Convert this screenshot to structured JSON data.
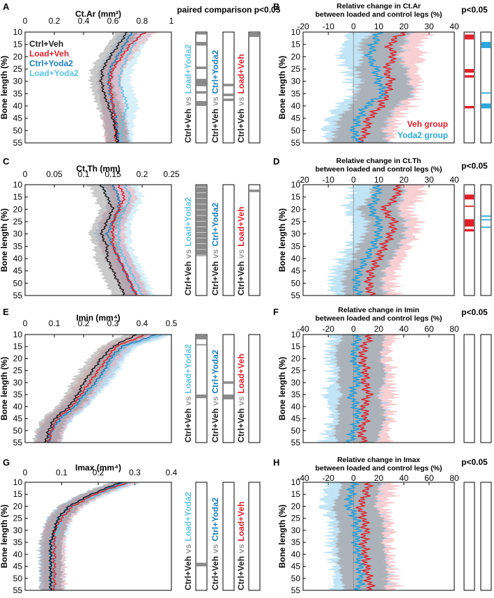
{
  "figure": {
    "common": {
      "ylabel": "Bone length (%)",
      "y_ticks": [
        10,
        15,
        20,
        25,
        30,
        35,
        40,
        45,
        50,
        55
      ],
      "ylim": [
        10,
        55
      ],
      "colors": {
        "ctrl_veh": "#1a1a1a",
        "load_veh": "#e0202a",
        "ctrl_yoda2": "#1a7fc0",
        "load_yoda2": "#5bc4e8",
        "grey_band": "#8a8a8a"
      }
    },
    "vs_label": "vs",
    "sig_header": "paired comparison p<0.05",
    "p_header": "p<0.05",
    "legend": [
      {
        "name": "Ctrl+Veh",
        "color": "#1a1a1a"
      },
      {
        "name": "Load+Veh",
        "color": "#e0202a"
      },
      {
        "name": "Ctrl+Yoda2",
        "color": "#1a7fc0"
      },
      {
        "name": "Load+Yoda2",
        "color": "#5bc4e8"
      }
    ],
    "right_legend": [
      {
        "name": "Veh group",
        "color": "#e0202a"
      },
      {
        "name": "Yoda2 group",
        "color": "#2aa7dc"
      }
    ],
    "comparisons": [
      {
        "label_a": "Ctrl+Veh",
        "label_b": "Load+Yoda2",
        "color_a": "#1a1a1a",
        "color_b": "#5bc4e8"
      },
      {
        "label_a": "Ctrl+Veh",
        "label_b": "Ctrl+Yoda2",
        "color_a": "#1a1a1a",
        "color_b": "#1a7fc0"
      },
      {
        "label_a": "Ctrl+Veh",
        "label_b": "Load+Veh",
        "color_a": "#1a1a1a",
        "color_b": "#e0202a"
      }
    ]
  },
  "chart_data": [
    {
      "panel": "A",
      "type": "line",
      "title": "Ct.Ar (mm²)",
      "xlim": [
        0,
        1
      ],
      "x_ticks": [
        "0",
        "0.2",
        "0.4",
        "0.6",
        "0.8",
        "1"
      ],
      "bone_length": [
        10,
        15,
        20,
        25,
        30,
        35,
        40,
        45,
        50,
        55
      ],
      "series": [
        {
          "name": "Ctrl+Veh",
          "values": [
            0.7,
            0.64,
            0.58,
            0.53,
            0.52,
            0.54,
            0.57,
            0.6,
            0.62,
            0.63
          ]
        },
        {
          "name": "Load+Veh",
          "values": [
            0.82,
            0.72,
            0.66,
            0.6,
            0.58,
            0.59,
            0.6,
            0.61,
            0.62,
            0.62
          ]
        },
        {
          "name": "Ctrl+Yoda2",
          "values": [
            0.73,
            0.68,
            0.63,
            0.58,
            0.57,
            0.58,
            0.6,
            0.62,
            0.63,
            0.64
          ]
        },
        {
          "name": "Load+Yoda2",
          "values": [
            0.8,
            0.74,
            0.7,
            0.66,
            0.64,
            0.67,
            0.7,
            0.67,
            0.66,
            0.66
          ]
        }
      ],
      "band_halfwidth": 0.09,
      "significance": [
        {
          "comparison": "Ctrl+Veh vs Load+Yoda2",
          "ranges": [
            [
              10,
              11
            ],
            [
              14,
              15.5
            ],
            [
              24,
              25
            ],
            [
              29,
              32
            ],
            [
              34,
              35
            ],
            [
              38,
              40
            ]
          ]
        },
        {
          "comparison": "Ctrl+Veh vs Ctrl+Yoda2",
          "ranges": [
            [
              31,
              32
            ],
            [
              35,
              36
            ],
            [
              37,
              38
            ]
          ]
        },
        {
          "comparison": "Ctrl+Veh vs Load+Veh",
          "ranges": [
            [
              10,
              12
            ]
          ]
        }
      ]
    },
    {
      "panel": "B",
      "type": "line",
      "title": "Relative change in Ct.Ar",
      "subtitle": "between loaded and control legs (%)",
      "xlim": [
        -20,
        40
      ],
      "x_ticks": [
        "-20",
        "-10",
        "0",
        "10",
        "20",
        "30",
        "40"
      ],
      "bone_length": [
        10,
        15,
        20,
        25,
        30,
        35,
        40,
        45,
        50,
        55
      ],
      "series": [
        {
          "name": "Veh group",
          "values": [
            20,
            14,
            16,
            13,
            15,
            13,
            11,
            6,
            5,
            3
          ]
        },
        {
          "name": "Yoda2 group",
          "values": [
            10,
            8,
            6,
            9,
            10,
            12,
            5,
            2,
            0,
            2
          ]
        }
      ],
      "band_halfwidth": 14,
      "significance": [
        {
          "group": "Veh group",
          "ranges": [
            [
              11,
              13
            ],
            [
              25,
              26.5
            ],
            [
              27.5,
              28.5
            ],
            [
              40,
              41
            ]
          ]
        },
        {
          "group": "Yoda2 group",
          "ranges": [
            [
              14,
              16.5
            ],
            [
              34.5,
              35
            ],
            [
              39,
              41
            ]
          ]
        }
      ]
    },
    {
      "panel": "C",
      "type": "line",
      "title": "Ct.Th (mm)",
      "xlim": [
        0,
        0.25
      ],
      "x_ticks": [
        "0",
        "0.05",
        "0.1",
        "0.15",
        "0.2",
        "0.25"
      ],
      "bone_length": [
        10,
        15,
        20,
        25,
        30,
        35,
        40,
        45,
        50,
        55
      ],
      "series": [
        {
          "name": "Ctrl+Veh",
          "values": [
            0.13,
            0.14,
            0.15,
            0.14,
            0.13,
            0.14,
            0.14,
            0.15,
            0.16,
            0.17
          ]
        },
        {
          "name": "Load+Veh",
          "values": [
            0.16,
            0.17,
            0.16,
            0.15,
            0.15,
            0.15,
            0.16,
            0.17,
            0.18,
            0.19
          ]
        },
        {
          "name": "Ctrl+Yoda2",
          "values": [
            0.15,
            0.16,
            0.16,
            0.15,
            0.14,
            0.15,
            0.16,
            0.17,
            0.18,
            0.19
          ]
        },
        {
          "name": "Load+Yoda2",
          "values": [
            0.17,
            0.18,
            0.17,
            0.16,
            0.16,
            0.16,
            0.17,
            0.18,
            0.19,
            0.2
          ]
        }
      ],
      "band_halfwidth": 0.025,
      "significance": [
        {
          "comparison": "Ctrl+Veh vs Load+Yoda2",
          "ranges": [
            [
              10,
              39
            ]
          ]
        },
        {
          "comparison": "Ctrl+Veh vs Ctrl+Yoda2",
          "ranges": []
        },
        {
          "comparison": "Ctrl+Veh vs Load+Veh",
          "ranges": [
            [
              12,
              13
            ]
          ]
        }
      ]
    },
    {
      "panel": "D",
      "type": "line",
      "title": "Relative change in Ct.Th",
      "subtitle": "between loaded and control legs (%)",
      "xlim": [
        -20,
        40
      ],
      "x_ticks": [
        "-20",
        "-10",
        "0",
        "10",
        "20",
        "30",
        "40"
      ],
      "bone_length": [
        10,
        15,
        20,
        25,
        30,
        35,
        40,
        45,
        50,
        55
      ],
      "series": [
        {
          "name": "Veh group",
          "values": [
            18,
            17,
            12,
            16,
            15,
            12,
            10,
            7,
            6,
            7
          ]
        },
        {
          "name": "Yoda2 group",
          "values": [
            10,
            9,
            7,
            10,
            10,
            8,
            5,
            2,
            1,
            2
          ]
        }
      ],
      "band_halfwidth": 12,
      "significance": [
        {
          "group": "Veh group",
          "ranges": [
            [
              14,
              16
            ],
            [
              18.5,
              19
            ],
            [
              24,
              27
            ],
            [
              28,
              29
            ]
          ]
        },
        {
          "group": "Yoda2 group",
          "ranges": [
            [
              22.5,
              23
            ],
            [
              24,
              24.5
            ],
            [
              27,
              27.5
            ]
          ]
        }
      ]
    },
    {
      "panel": "E",
      "type": "line",
      "title": "Imin (mm⁴)",
      "xlim": [
        0,
        0.5
      ],
      "x_ticks": [
        "0",
        "0.1",
        "0.2",
        "0.3",
        "0.4",
        "0.5"
      ],
      "bone_length": [
        10,
        15,
        20,
        25,
        30,
        35,
        40,
        45,
        50,
        55
      ],
      "series": [
        {
          "name": "Ctrl+Veh",
          "values": [
            0.38,
            0.3,
            0.26,
            0.23,
            0.2,
            0.18,
            0.15,
            0.1,
            0.08,
            0.07
          ]
        },
        {
          "name": "Load+Veh",
          "values": [
            0.41,
            0.31,
            0.28,
            0.25,
            0.22,
            0.19,
            0.16,
            0.11,
            0.09,
            0.08
          ]
        },
        {
          "name": "Ctrl+Yoda2",
          "values": [
            0.45,
            0.33,
            0.29,
            0.27,
            0.24,
            0.2,
            0.17,
            0.12,
            0.09,
            0.08
          ]
        },
        {
          "name": "Load+Yoda2",
          "values": [
            0.47,
            0.34,
            0.3,
            0.28,
            0.25,
            0.21,
            0.17,
            0.12,
            0.09,
            0.08
          ]
        }
      ],
      "band_halfwidth": 0.05,
      "significance": [
        {
          "comparison": "Ctrl+Veh vs Load+Yoda2",
          "ranges": [
            [
              10,
              12
            ],
            [
              14,
              14.5
            ],
            [
              35,
              36.5
            ]
          ]
        },
        {
          "comparison": "Ctrl+Veh vs Ctrl+Yoda2",
          "ranges": [
            [
              29.5,
              30.5
            ],
            [
              35,
              37
            ]
          ]
        },
        {
          "comparison": "Ctrl+Veh vs Load+Veh",
          "ranges": []
        }
      ]
    },
    {
      "panel": "F",
      "type": "line",
      "title": "Relative change in Imin",
      "subtitle": "between loaded and control legs (%)",
      "xlim": [
        -40,
        80
      ],
      "x_ticks": [
        "-40",
        "-20",
        "0",
        "20",
        "40",
        "60",
        "80"
      ],
      "bone_length": [
        10,
        15,
        20,
        25,
        30,
        35,
        40,
        45,
        50,
        55
      ],
      "series": [
        {
          "name": "Veh group",
          "values": [
            14,
            8,
            7,
            10,
            9,
            12,
            8,
            10,
            6,
            8
          ]
        },
        {
          "name": "Yoda2 group",
          "values": [
            3,
            2,
            0,
            4,
            3,
            -2,
            2,
            4,
            0,
            -3
          ]
        }
      ],
      "band_halfwidth": 25,
      "significance": []
    },
    {
      "panel": "G",
      "type": "line",
      "title": "Imax (mm⁴)",
      "xlim": [
        0,
        0.4
      ],
      "x_ticks": [
        "0",
        "0.1",
        "0.2",
        "0.3",
        "0.4"
      ],
      "bone_length": [
        10,
        15,
        20,
        25,
        30,
        35,
        40,
        45,
        50,
        55
      ],
      "series": [
        {
          "name": "Ctrl+Veh",
          "values": [
            0.26,
            0.18,
            0.12,
            0.09,
            0.08,
            0.07,
            0.07,
            0.07,
            0.07,
            0.07
          ]
        },
        {
          "name": "Load+Veh",
          "values": [
            0.28,
            0.19,
            0.13,
            0.1,
            0.08,
            0.08,
            0.08,
            0.08,
            0.08,
            0.08
          ]
        },
        {
          "name": "Ctrl+Yoda2",
          "values": [
            0.27,
            0.18,
            0.12,
            0.09,
            0.08,
            0.07,
            0.07,
            0.07,
            0.07,
            0.07
          ]
        },
        {
          "name": "Load+Yoda2",
          "values": [
            0.29,
            0.2,
            0.13,
            0.1,
            0.09,
            0.08,
            0.08,
            0.08,
            0.08,
            0.08
          ]
        }
      ],
      "band_halfwidth": 0.035,
      "significance": [
        {
          "comparison": "Ctrl+Veh vs Load+Yoda2",
          "ranges": [
            [
              43.5,
              45
            ]
          ]
        },
        {
          "comparison": "Ctrl+Veh vs Ctrl+Yoda2",
          "ranges": []
        },
        {
          "comparison": "Ctrl+Veh vs Load+Veh",
          "ranges": []
        }
      ]
    },
    {
      "panel": "H",
      "type": "line",
      "title": "Relative change in Imax",
      "subtitle": "between loaded and control legs (%)",
      "xlim": [
        -40,
        80
      ],
      "x_ticks": [
        "-40",
        "-20",
        "0",
        "20",
        "40",
        "60",
        "80"
      ],
      "bone_length": [
        10,
        15,
        20,
        25,
        30,
        35,
        40,
        45,
        50,
        55
      ],
      "series": [
        {
          "name": "Veh group",
          "values": [
            12,
            10,
            5,
            8,
            10,
            8,
            9,
            10,
            12,
            14
          ]
        },
        {
          "name": "Yoda2 group",
          "values": [
            0,
            -2,
            -4,
            2,
            3,
            2,
            4,
            5,
            6,
            4
          ]
        }
      ],
      "band_halfwidth": 25,
      "significance": []
    }
  ]
}
